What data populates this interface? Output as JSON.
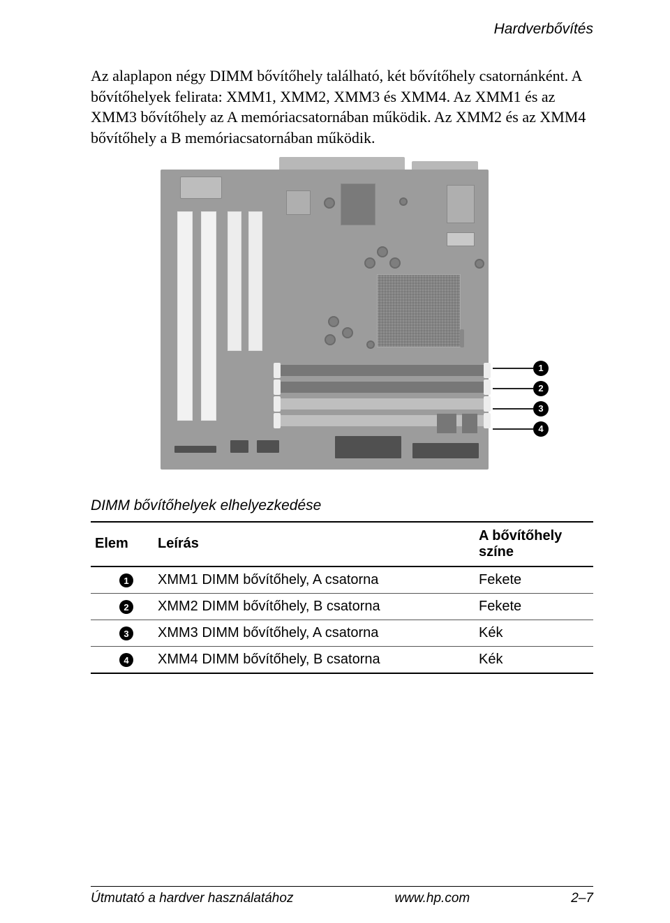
{
  "header": {
    "title": "Hardverbővítés"
  },
  "body": {
    "paragraph": "Az alaplapon négy DIMM bővítőhely található, két bővítőhely csatornánként. A bővítőhelyek felirata: XMM1, XMM2, XMM3 és XMM4. Az XMM1 és az XMM3 bővítőhely az A memóriacsatornában működik. Az XMM2 és az XMM4 bővítőhely a B memóriacsatornában működik."
  },
  "diagram": {
    "board_color": "#9c9c9c",
    "dimm_dark_color": "#777777",
    "dimm_light_color": "#bfbfbf",
    "callouts": [
      {
        "n": "1"
      },
      {
        "n": "2"
      },
      {
        "n": "3"
      },
      {
        "n": "4"
      }
    ]
  },
  "caption": "DIMM bővítőhelyek elhelyezkedése",
  "table": {
    "columns": [
      "Elem",
      "Leírás",
      "A bővítőhely színe"
    ],
    "rows": [
      {
        "n": "1",
        "desc": "XMM1 DIMM bővítőhely, A csatorna",
        "color": "Fekete"
      },
      {
        "n": "2",
        "desc": "XMM2 DIMM bővítőhely, B csatorna",
        "color": "Fekete"
      },
      {
        "n": "3",
        "desc": "XMM3 DIMM bővítőhely, A csatorna",
        "color": "Kék"
      },
      {
        "n": "4",
        "desc": "XMM4 DIMM bővítőhely, B csatorna",
        "color": "Kék"
      }
    ]
  },
  "footer": {
    "left": "Útmutató a hardver használatához",
    "center": "www.hp.com",
    "right": "2–7"
  },
  "colors": {
    "text": "#000000",
    "rule": "#000000",
    "bg": "#ffffff"
  }
}
